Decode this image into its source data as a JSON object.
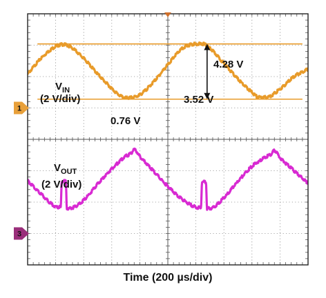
{
  "chart_data": {
    "type": "line",
    "xlabel": "Time (200 µs/div)",
    "grid": true,
    "divisions": {
      "x": 10,
      "y": 8
    },
    "x_unit": "div",
    "y_unit": "div",
    "series": [
      {
        "color": "#E89B2A",
        "reference_marker": "1",
        "label_main": "V",
        "label_sub": "IN",
        "label_scale": "(2 V/div)",
        "x": [
          0,
          0.5,
          1.0,
          1.25,
          1.5,
          2.0,
          2.5,
          3.0,
          3.25,
          3.5,
          4.0,
          4.5,
          5.0,
          5.5,
          6.0,
          6.25,
          6.5,
          7.0,
          7.5,
          8.0,
          8.25,
          8.5,
          9.0,
          9.5,
          10.0
        ],
        "y": [
          6.08,
          6.6,
          6.96,
          7.02,
          6.96,
          6.58,
          6.08,
          5.62,
          5.42,
          5.32,
          5.42,
          5.84,
          6.38,
          6.88,
          7.04,
          7.04,
          6.9,
          6.42,
          5.92,
          5.5,
          5.34,
          5.34,
          5.6,
          6.0,
          6.24
        ]
      },
      {
        "color": "#D82AD2",
        "reference_marker": "3",
        "label_main": "V",
        "label_sub": "OUT",
        "label_scale": "(2 V/div)",
        "x": [
          0,
          0.5,
          1.0,
          1.18,
          1.22,
          1.36,
          1.4,
          1.6,
          2.0,
          2.5,
          3.0,
          3.5,
          3.7,
          3.8,
          4.0,
          4.5,
          5.0,
          5.5,
          6.0,
          6.18,
          6.22,
          6.36,
          6.4,
          6.5,
          7.0,
          7.5,
          8.0,
          8.5,
          8.7,
          8.8,
          9.0,
          9.5,
          10.0
        ],
        "y": [
          2.68,
          2.24,
          1.86,
          1.84,
          2.66,
          2.66,
          1.8,
          1.82,
          2.06,
          2.58,
          3.06,
          3.46,
          3.56,
          3.68,
          3.46,
          2.98,
          2.5,
          2.1,
          1.84,
          1.82,
          2.64,
          2.64,
          1.8,
          1.8,
          2.14,
          2.66,
          3.14,
          3.44,
          3.54,
          3.64,
          3.42,
          3.0,
          2.6
        ]
      }
    ],
    "cursors": [
      {
        "level_div": 7.04,
        "label": "4.28 V"
      },
      {
        "level_div": 5.28,
        "label": "0.76 V"
      }
    ],
    "annotations": {
      "delta_label": "3.52 V",
      "delta_x_div": 6.4
    },
    "markers": {
      "top_trigger_x_div": 5.0,
      "ch1_level_div": 5.0,
      "ch3_level_div": 1.0
    }
  }
}
